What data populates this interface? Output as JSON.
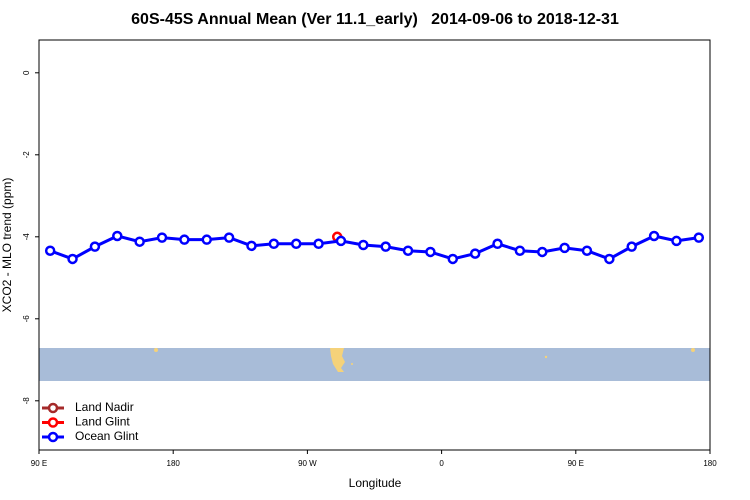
{
  "chart_data": {
    "type": "line",
    "title": "60S-45S Annual Mean (Ver 11.1_early)   2014-09-06 to 2018-12-31",
    "x_label": "Longitude",
    "y_label": "XCO2 - MLO trend (ppm)",
    "xlim": [
      90,
      540
    ],
    "xticks": [
      {
        "value": 90,
        "label": "90 E"
      },
      {
        "value": 180,
        "label": "180"
      },
      {
        "value": 270,
        "label": "90 W"
      },
      {
        "value": 360,
        "label": "0"
      },
      {
        "value": 450,
        "label": "90 E"
      },
      {
        "value": 540,
        "label": "180"
      }
    ],
    "ylim": [
      -9.2,
      0.8
    ],
    "yticks": [
      0,
      -2,
      -4,
      -6,
      -8
    ],
    "legend": "bottom-left",
    "series": [
      {
        "name": "Land Nadir",
        "color": "#a52a2a",
        "x": [],
        "values": []
      },
      {
        "name": "Land Glint",
        "color": "#ff0000",
        "x": [
          290
        ],
        "values": [
          -4.0
        ]
      },
      {
        "name": "Ocean Glint",
        "color": "#0000ff",
        "x": [
          97.5,
          112.5,
          127.5,
          142.5,
          157.5,
          172.5,
          187.5,
          202.5,
          217.5,
          232.5,
          247.5,
          262.5,
          277.5,
          292.5,
          307.5,
          322.5,
          337.5,
          352.5,
          367.5,
          382.5,
          397.5,
          412.5,
          427.5,
          442.5,
          457.5,
          472.5,
          487.5,
          502.5,
          517.5,
          532.5
        ],
        "values": [
          -4.34,
          -4.54,
          -4.24,
          -3.98,
          -4.12,
          -4.02,
          -4.07,
          -4.07,
          -4.02,
          -4.22,
          -4.17,
          -4.17,
          -4.17,
          -4.1,
          -4.2,
          -4.24,
          -4.34,
          -4.37,
          -4.54,
          -4.41,
          -4.17,
          -4.34,
          -4.37,
          -4.27,
          -4.34,
          -4.54,
          -4.24,
          -3.98,
          -4.1,
          -4.02
        ]
      }
    ]
  }
}
